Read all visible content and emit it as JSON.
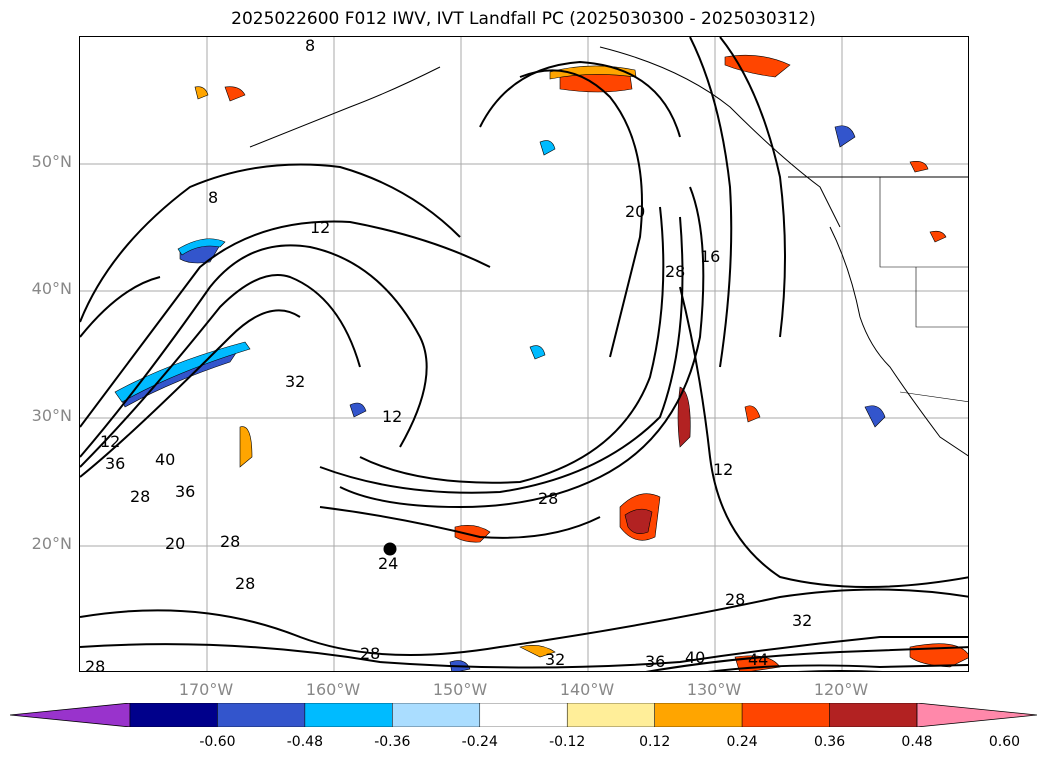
{
  "title": "2025022600 F012 IWV, IVT Landfall PC (2025030300 - 2025030312)",
  "lat_labels": [
    "50°N",
    "40°N",
    "30°N",
    "20°N"
  ],
  "lon_labels": [
    "170°W",
    "160°W",
    "150°W",
    "140°W",
    "130°W",
    "120°W"
  ],
  "contour_labels": [
    "8",
    "8",
    "12",
    "12",
    "12",
    "16",
    "20",
    "28",
    "28",
    "28",
    "28",
    "28",
    "28",
    "28",
    "32",
    "32",
    "32",
    "36",
    "36",
    "36",
    "40",
    "40",
    "44",
    "24",
    "28",
    "20",
    "12"
  ],
  "colorbar": {
    "ticks": [
      "-0.60",
      "-0.48",
      "-0.36",
      "-0.24",
      "-0.12",
      "0.12",
      "0.24",
      "0.36",
      "0.48",
      "0.60"
    ],
    "colors": [
      "#9933cc",
      "#00008b",
      "#3355cc",
      "#00bbff",
      "#aaddff",
      "#ffffff",
      "#ffee99",
      "#ffa500",
      "#ff4500",
      "#b22222",
      "#ff88aa"
    ]
  },
  "colors": {
    "land_contour": "#000000",
    "grid": "#aaaaaa",
    "label_gray": "#888888"
  }
}
